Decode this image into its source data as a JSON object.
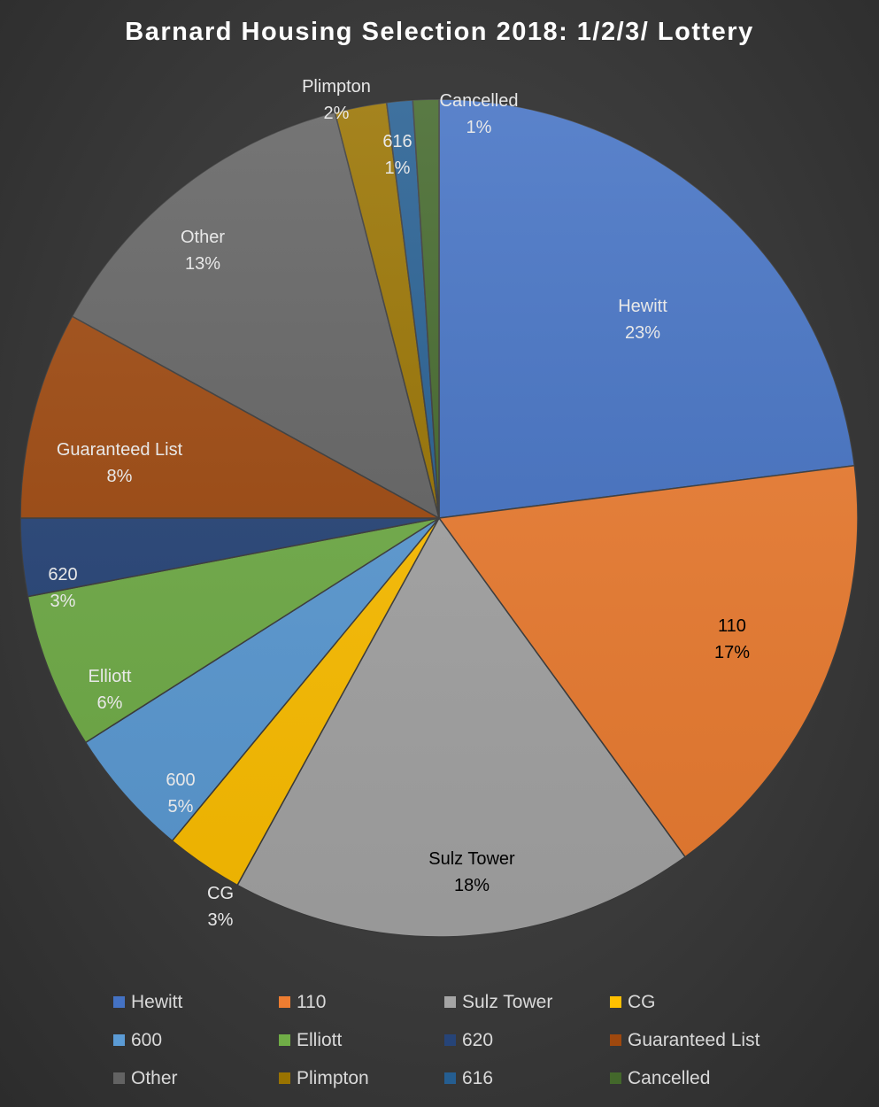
{
  "chart_data": {
    "type": "pie",
    "title": "Barnard Housing Selection 2018: 1/2/3/ Lottery",
    "slices": [
      {
        "name": "Hewitt",
        "percent": 23,
        "label": "23%",
        "color": "#4472c4",
        "label_color": "#e8e8e8"
      },
      {
        "name": "110",
        "percent": 17,
        "label": "17%",
        "color": "#ed7d31",
        "label_color": "#000000"
      },
      {
        "name": "Sulz Tower",
        "percent": 18,
        "label": "18%",
        "color": "#a5a5a5",
        "label_color": "#000000"
      },
      {
        "name": "CG",
        "percent": 3,
        "label": "3%",
        "color": "#ffc000",
        "label_color": "#e8e8e8"
      },
      {
        "name": "600",
        "percent": 5,
        "label": "5%",
        "color": "#5b9bd5",
        "label_color": "#e8e8e8"
      },
      {
        "name": "Elliott",
        "percent": 6,
        "label": "6%",
        "color": "#70ad47",
        "label_color": "#e8e8e8"
      },
      {
        "name": "620",
        "percent": 3,
        "label": "3%",
        "color": "#264478",
        "label_color": "#e8e8e8"
      },
      {
        "name": "Guaranteed List",
        "percent": 8,
        "label": "8%",
        "color": "#9e480e",
        "label_color": "#e8e8e8"
      },
      {
        "name": "Other",
        "percent": 13,
        "label": "13%",
        "color": "#636363",
        "label_color": "#e8e8e8"
      },
      {
        "name": "Plimpton",
        "percent": 2,
        "label": "2%",
        "color": "#997300",
        "label_color": "#e8e8e8"
      },
      {
        "name": "616",
        "percent": 1,
        "label": "1%",
        "color": "#255e91",
        "label_color": "#e8e8e8"
      },
      {
        "name": "Cancelled",
        "percent": 1,
        "label": "1%",
        "color": "#43682b",
        "label_color": "#e8e8e8"
      }
    ],
    "legend_position": "bottom",
    "background": "#3a3a3a"
  }
}
